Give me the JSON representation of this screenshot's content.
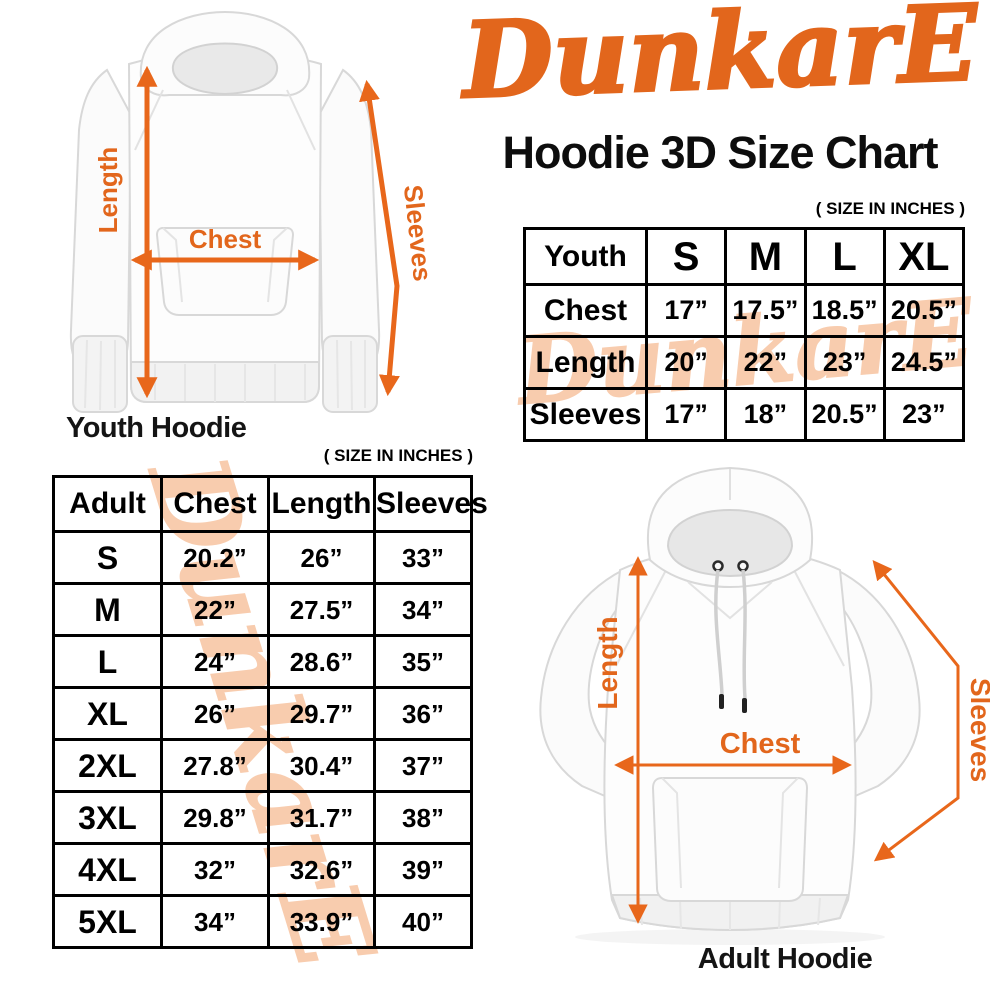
{
  "brand": {
    "name": "DunkarE",
    "accent_color": "#E2661C",
    "arrow_color": "#E8671B",
    "watermark_color": "#F8CCAE"
  },
  "title": "Hoodie 3D Size Chart",
  "youth_figure": {
    "caption": "Youth Hoodie",
    "labels": {
      "length": "Length",
      "chest": "Chest",
      "sleeves": "Sleeves"
    }
  },
  "adult_figure": {
    "caption": "Adult Hoodie",
    "labels": {
      "length": "Length",
      "chest": "Chest",
      "sleeves": "Sleeves"
    }
  },
  "youth_table": {
    "size_note": "( SIZE IN INCHES )",
    "header": [
      "Youth",
      "S",
      "M",
      "L",
      "XL"
    ],
    "rows": [
      [
        "Chest",
        "17”",
        "17.5”",
        "18.5”",
        "20.5”"
      ],
      [
        "Length",
        "20”",
        "22”",
        "23”",
        "24.5”"
      ],
      [
        "Sleeves",
        "17”",
        "18”",
        "20.5”",
        "23”"
      ]
    ]
  },
  "adult_table": {
    "size_note": "( SIZE IN INCHES )",
    "header": [
      "Adult",
      "Chest",
      "Length",
      "Sleeves"
    ],
    "rows": [
      [
        "S",
        "20.2”",
        "26”",
        "33”"
      ],
      [
        "M",
        "22”",
        "27.5”",
        "34”"
      ],
      [
        "L",
        "24”",
        "28.6”",
        "35”"
      ],
      [
        "XL",
        "26”",
        "29.7”",
        "36”"
      ],
      [
        "2XL",
        "27.8”",
        "30.4”",
        "37”"
      ],
      [
        "3XL",
        "29.8”",
        "31.7”",
        "38”"
      ],
      [
        "4XL",
        "32”",
        "32.6”",
        "39”"
      ],
      [
        "5XL",
        "34”",
        "33.9”",
        "40”"
      ]
    ]
  }
}
